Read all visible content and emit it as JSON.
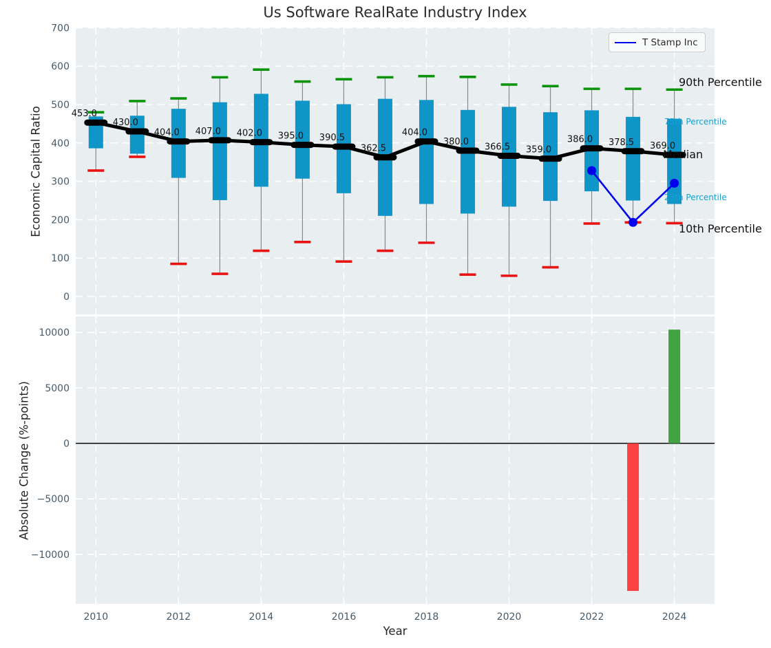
{
  "title": "Us Software RealRate Industry Index",
  "legend": {
    "label": "T Stamp Inc"
  },
  "xlabel": "Year",
  "top_chart": {
    "ylabel": "Economic Capital Ratio",
    "yticks": [
      0,
      100,
      200,
      300,
      400,
      500,
      600,
      700
    ],
    "annotations": {
      "p90": "90th Percentile",
      "p75": "75th Percentile",
      "median": "Median",
      "p25": "25th Percentile",
      "p10": "10th Percentile"
    }
  },
  "bottom_chart": {
    "ylabel": "Absolute Change (%-points)",
    "yticks": [
      -10000,
      -5000,
      0,
      5000,
      10000
    ]
  },
  "xticks": [
    2010,
    2012,
    2014,
    2016,
    2018,
    2020,
    2022,
    2024
  ],
  "chart_data": [
    {
      "type": "boxplot+line",
      "title": "Us Software RealRate Industry Index",
      "xlabel": "Year",
      "ylabel": "Economic Capital Ratio",
      "xlim": [
        2009.5,
        2025
      ],
      "ylim": [
        -47,
        703
      ],
      "grid": true,
      "years": [
        2010,
        2011,
        2012,
        2013,
        2014,
        2015,
        2016,
        2017,
        2018,
        2019,
        2020,
        2021,
        2022,
        2023,
        2024
      ],
      "p90": [
        480,
        509,
        516,
        571,
        591,
        560,
        566,
        571,
        574,
        572,
        552,
        548,
        541,
        541,
        539
      ],
      "p75": [
        469,
        471,
        489,
        506,
        528,
        510,
        501,
        515,
        512,
        486,
        494,
        480,
        485,
        468,
        463
      ],
      "median": [
        453.0,
        430.0,
        404.0,
        407.0,
        402.0,
        395.0,
        390.5,
        362.5,
        404.0,
        380.0,
        366.5,
        359.0,
        386.0,
        378.5,
        369.0
      ],
      "p25": [
        386,
        372,
        309,
        251,
        286,
        307,
        269,
        210,
        241,
        216,
        234,
        249,
        274,
        250,
        241
      ],
      "p10": [
        328,
        364,
        85,
        59,
        119,
        142,
        91,
        119,
        140,
        57,
        54,
        76,
        190,
        193,
        191
      ],
      "median_labels": [
        "453.0",
        "430.0",
        "404.0",
        "407.0",
        "402.0",
        "395.0",
        "390.5",
        "362.5",
        "404.0",
        "380.0",
        "366.5",
        "359.0",
        "386.0",
        "378.5",
        "369.0"
      ],
      "series": [
        {
          "name": "T Stamp Inc",
          "x": [
            2022,
            2023,
            2024
          ],
          "values": [
            328,
            193,
            295
          ]
        }
      ],
      "legend_position": "upper right"
    },
    {
      "type": "bar",
      "xlabel": "Year",
      "ylabel": "Absolute Change (%-points)",
      "xlim": [
        2009.5,
        2025
      ],
      "ylim": [
        -14450,
        11450
      ],
      "grid": true,
      "bars": [
        {
          "year": 2023,
          "value": -13300,
          "color": "negative"
        },
        {
          "year": 2024,
          "value": 10250,
          "color": "positive"
        }
      ],
      "zero_line": 0
    }
  ],
  "colors": {
    "plot_bg": "#e9eef0",
    "grid": "#ffffff",
    "box_fill": "#1095c9",
    "whisker": "#888888",
    "p90_cap": "#0a930a",
    "p10_cap": "#e81414",
    "median_line": "#000000",
    "tstamp_line": "#0000ee",
    "bar_positive": "#41a341",
    "bar_negative": "#fb4343",
    "tick_text": "#455a6b",
    "annotation_cyan": "#14a3d4",
    "annotation_black": "#111111",
    "zero_line": "#000000"
  }
}
